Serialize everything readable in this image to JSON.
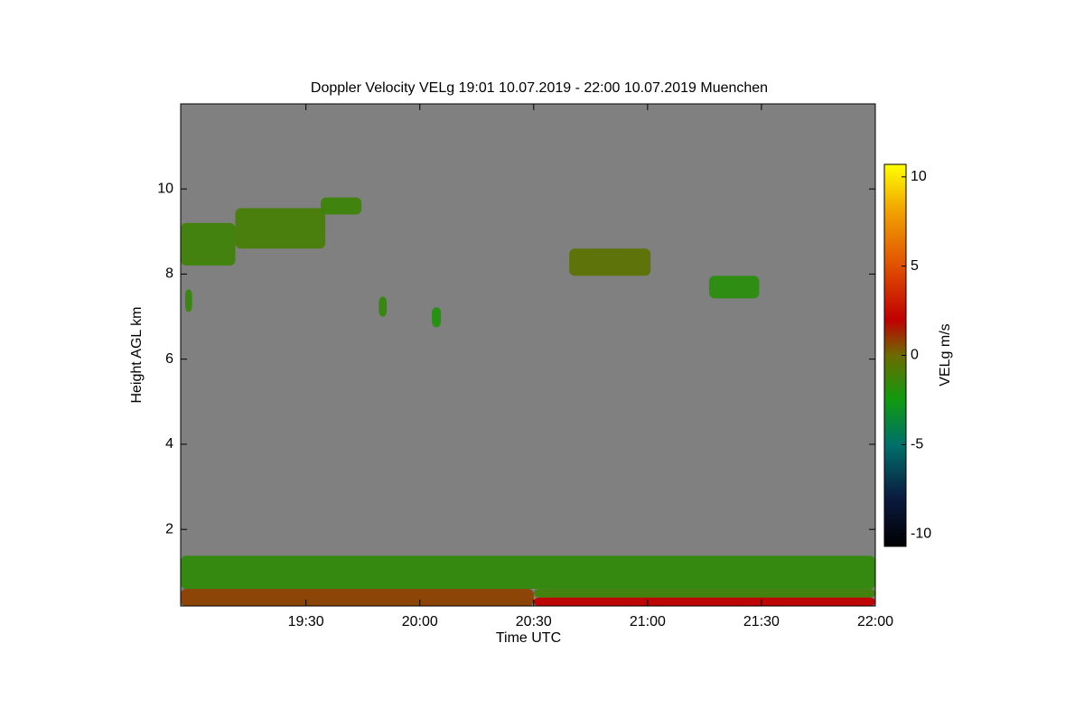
{
  "chart_data": {
    "type": "heatmap",
    "title": "Doppler Velocity VELg   19:01 10.07.2019 - 22:00 10.07.2019 Muenchen",
    "xlabel": "Time UTC",
    "ylabel": "Height AGL km",
    "colorbar_label": "VELg m/s",
    "background": "#808080",
    "xlim": [
      18.95,
      22.0
    ],
    "xticks": [
      {
        "value": 19.5,
        "label": "19:30"
      },
      {
        "value": 20.0,
        "label": "20:00"
      },
      {
        "value": 20.5,
        "label": "20:30"
      },
      {
        "value": 21.0,
        "label": "21:00"
      },
      {
        "value": 21.5,
        "label": "21:30"
      },
      {
        "value": 22.0,
        "label": "22:00"
      }
    ],
    "ylim": [
      0.2,
      12
    ],
    "yticks": [
      2,
      4,
      6,
      8,
      10
    ],
    "clim": [
      -10.7,
      10.7
    ],
    "cticks": [
      {
        "value": 10,
        "label": "10"
      },
      {
        "value": 5,
        "label": "5"
      },
      {
        "value": 0,
        "label": "0"
      },
      {
        "value": -5,
        "label": "-5"
      },
      {
        "value": -10,
        "label": "-10"
      }
    ],
    "colorscale": [
      [
        -10.7,
        "#000000"
      ],
      [
        -8,
        "#0a1a40"
      ],
      [
        -5,
        "#00706a"
      ],
      [
        -2.5,
        "#109a10"
      ],
      [
        0,
        "#6b6b00"
      ],
      [
        2,
        "#c00000"
      ],
      [
        5,
        "#e05000"
      ],
      [
        8,
        "#f0a000"
      ],
      [
        10.7,
        "#ffff00"
      ]
    ],
    "cells": [
      {
        "x0": 18.95,
        "x1": 19.19,
        "y0": 8.2,
        "y1": 9.2,
        "value": -1.2
      },
      {
        "x0": 19.19,
        "x1": 19.585,
        "y0": 8.6,
        "y1": 9.55,
        "value": -1
      },
      {
        "x0": 19.565,
        "x1": 19.744,
        "y0": 9.4,
        "y1": 9.8,
        "value": -1.3
      },
      {
        "x0": 18.97,
        "x1": 19.0,
        "y0": 7.11,
        "y1": 7.64,
        "value": -1.5
      },
      {
        "x0": 19.82,
        "x1": 19.855,
        "y0": 7.0,
        "y1": 7.47,
        "value": -1.5
      },
      {
        "x0": 20.053,
        "x1": 20.093,
        "y0": 6.75,
        "y1": 7.22,
        "value": -2
      },
      {
        "x0": 20.656,
        "x1": 21.013,
        "y0": 7.96,
        "y1": 8.6,
        "value": -0.4
      },
      {
        "x0": 21.27,
        "x1": 21.49,
        "y0": 7.43,
        "y1": 7.96,
        "value": -1.8
      },
      {
        "x0": 18.95,
        "x1": 22.0,
        "y0": 0.6,
        "y1": 1.38,
        "value": -1.6
      },
      {
        "x0": 18.95,
        "x1": 20.5,
        "y0": 0.2,
        "y1": 0.6,
        "value": 0.8
      },
      {
        "x0": 20.5,
        "x1": 22.0,
        "y0": 0.4,
        "y1": 0.6,
        "value": -1.2
      },
      {
        "x0": 20.5,
        "x1": 22.0,
        "y0": 0.2,
        "y1": 0.4,
        "value": 2
      }
    ]
  }
}
